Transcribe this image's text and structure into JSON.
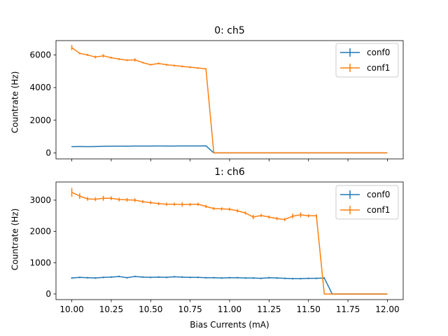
{
  "chart_data": [
    {
      "type": "line",
      "title": "0: ch5",
      "xlabel": "",
      "ylabel": "Countrate (Hz)",
      "xlim": [
        9.9,
        12.1
      ],
      "ylim": [
        -370,
        6880
      ],
      "xticks": [
        10.0,
        10.25,
        10.5,
        10.75,
        11.0,
        11.25,
        11.5,
        11.75,
        12.0
      ],
      "xtick_labels_visible": false,
      "yticks": [
        0,
        2000,
        4000,
        6000
      ],
      "legend": "top-right",
      "grid": false,
      "series": [
        {
          "name": "conf0",
          "color": "#1f77b4",
          "x": [
            10.0,
            10.05,
            10.1,
            10.15,
            10.2,
            10.25,
            10.3,
            10.35,
            10.4,
            10.45,
            10.5,
            10.55,
            10.6,
            10.65,
            10.7,
            10.75,
            10.8,
            10.85,
            10.9,
            12.0
          ],
          "y": [
            380,
            385,
            380,
            385,
            400,
            410,
            415,
            410,
            420,
            420,
            420,
            425,
            420,
            420,
            425,
            425,
            425,
            430,
            0,
            0
          ],
          "err": [
            20,
            20,
            20,
            20,
            20,
            20,
            20,
            20,
            20,
            20,
            20,
            20,
            20,
            20,
            20,
            20,
            20,
            20,
            0,
            0
          ]
        },
        {
          "name": "conf1",
          "color": "#ff7f0e",
          "x": [
            10.0,
            10.05,
            10.1,
            10.15,
            10.2,
            10.25,
            10.3,
            10.35,
            10.4,
            10.45,
            10.5,
            10.55,
            10.6,
            10.65,
            10.7,
            10.75,
            10.8,
            10.85,
            10.9,
            12.0
          ],
          "y": [
            6450,
            6100,
            6000,
            5870,
            5950,
            5830,
            5750,
            5680,
            5700,
            5530,
            5400,
            5480,
            5400,
            5350,
            5300,
            5250,
            5200,
            5150,
            0,
            0
          ],
          "err": [
            160,
            60,
            60,
            80,
            100,
            60,
            60,
            60,
            100,
            50,
            50,
            60,
            60,
            60,
            60,
            60,
            50,
            50,
            0,
            0
          ]
        }
      ]
    },
    {
      "type": "line",
      "title": "1: ch6",
      "xlabel": "Bias Currents (mA)",
      "ylabel": "Countrate (Hz)",
      "xlim": [
        9.9,
        12.1
      ],
      "ylim": [
        -180,
        3580
      ],
      "xticks": [
        10.0,
        10.25,
        10.5,
        10.75,
        11.0,
        11.25,
        11.5,
        11.75,
        12.0
      ],
      "xtick_labels": [
        "10.00",
        "10.25",
        "10.50",
        "10.75",
        "11.00",
        "11.25",
        "11.50",
        "11.75",
        "12.00"
      ],
      "xtick_labels_visible": true,
      "yticks": [
        0,
        1000,
        2000,
        3000
      ],
      "legend": "top-right",
      "grid": false,
      "series": [
        {
          "name": "conf0",
          "color": "#1f77b4",
          "x": [
            10.0,
            10.05,
            10.1,
            10.15,
            10.2,
            10.25,
            10.3,
            10.35,
            10.4,
            10.45,
            10.5,
            10.55,
            10.6,
            10.65,
            10.7,
            10.75,
            10.8,
            10.85,
            10.9,
            10.95,
            11.0,
            11.05,
            11.1,
            11.15,
            11.2,
            11.25,
            11.3,
            11.35,
            11.4,
            11.45,
            11.5,
            11.55,
            11.6,
            11.65,
            12.0
          ],
          "y": [
            510,
            530,
            520,
            510,
            530,
            540,
            560,
            520,
            560,
            540,
            530,
            540,
            530,
            550,
            540,
            530,
            530,
            520,
            520,
            510,
            520,
            520,
            510,
            510,
            500,
            520,
            510,
            500,
            490,
            490,
            500,
            500,
            510,
            0,
            0
          ],
          "err": [
            25,
            25,
            25,
            25,
            25,
            25,
            25,
            25,
            25,
            25,
            25,
            25,
            25,
            25,
            25,
            25,
            25,
            25,
            25,
            25,
            25,
            25,
            25,
            25,
            25,
            25,
            25,
            25,
            25,
            25,
            25,
            25,
            25,
            0,
            0
          ]
        },
        {
          "name": "conf1",
          "color": "#ff7f0e",
          "x": [
            10.0,
            10.05,
            10.1,
            10.15,
            10.2,
            10.25,
            10.3,
            10.35,
            10.4,
            10.45,
            10.5,
            10.55,
            10.6,
            10.65,
            10.7,
            10.75,
            10.8,
            10.85,
            10.9,
            10.95,
            11.0,
            11.05,
            11.1,
            11.15,
            11.2,
            11.25,
            11.3,
            11.35,
            11.4,
            11.45,
            11.5,
            11.55,
            11.6,
            11.65,
            12.0
          ],
          "y": [
            3250,
            3130,
            3040,
            3030,
            3060,
            3060,
            3020,
            3010,
            3000,
            2950,
            2920,
            2890,
            2870,
            2870,
            2860,
            2860,
            2870,
            2800,
            2730,
            2720,
            2710,
            2660,
            2590,
            2460,
            2510,
            2460,
            2410,
            2380,
            2490,
            2530,
            2500,
            2500,
            0,
            0,
            0
          ],
          "err": [
            140,
            90,
            60,
            60,
            80,
            60,
            60,
            60,
            60,
            50,
            50,
            50,
            50,
            50,
            70,
            50,
            50,
            50,
            50,
            50,
            50,
            50,
            50,
            70,
            50,
            50,
            50,
            50,
            80,
            80,
            50,
            50,
            0,
            0,
            0
          ]
        }
      ]
    }
  ]
}
